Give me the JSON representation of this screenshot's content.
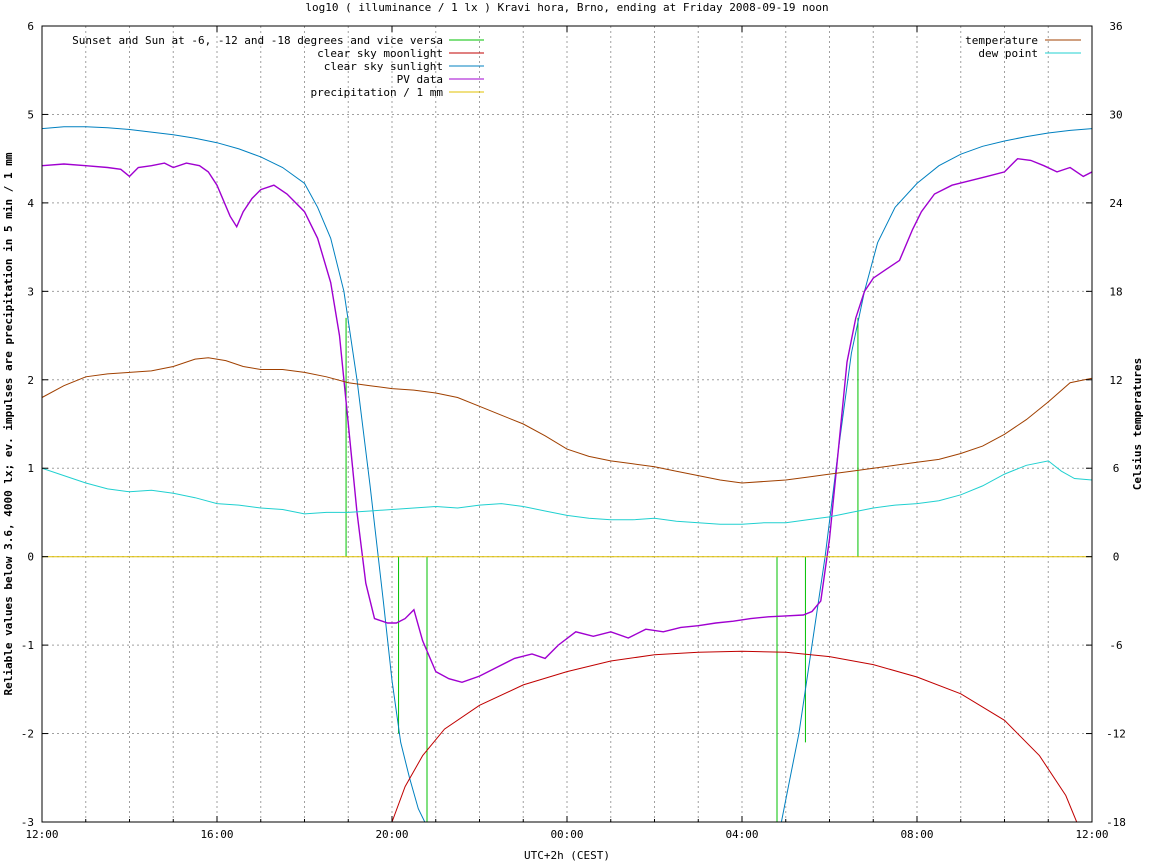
{
  "chart_data": {
    "type": "line",
    "title": "log10 ( illuminance / 1 lx ) Kravi hora, Brno, ending at Friday 2008-09-19 noon",
    "xlabel": "UTC+2h (CEST)",
    "ylabel": "Reliable values below 3.6, 4000 lx; ev. impulses are precipitation in 5 min / 1 mm",
    "y2label": "Celsius temperatures",
    "x_unit": "hours since 12:00 start",
    "xlim": [
      0,
      24
    ],
    "ylim": [
      -3,
      6
    ],
    "y2lim": [
      -18,
      36
    ],
    "grid": true,
    "x_ticks": [
      {
        "v": 0,
        "label": "12:00"
      },
      {
        "v": 4,
        "label": "16:00"
      },
      {
        "v": 8,
        "label": "20:00"
      },
      {
        "v": 12,
        "label": "00:00"
      },
      {
        "v": 16,
        "label": "04:00"
      },
      {
        "v": 20,
        "label": "08:00"
      },
      {
        "v": 24,
        "label": "12:00"
      }
    ],
    "y_ticks": [
      {
        "v": -3,
        "label": "-3"
      },
      {
        "v": -2,
        "label": "-2"
      },
      {
        "v": -1,
        "label": "-1"
      },
      {
        "v": 0,
        "label": "0"
      },
      {
        "v": 1,
        "label": "1"
      },
      {
        "v": 2,
        "label": "2"
      },
      {
        "v": 3,
        "label": "3"
      },
      {
        "v": 4,
        "label": "4"
      },
      {
        "v": 5,
        "label": "5"
      },
      {
        "v": 6,
        "label": "6"
      }
    ],
    "y2_ticks": [
      {
        "v": -18,
        "label": "-18"
      },
      {
        "v": -12,
        "label": "-12"
      },
      {
        "v": -6,
        "label": "-6"
      },
      {
        "v": 0,
        "label": "0"
      },
      {
        "v": 6,
        "label": "6"
      },
      {
        "v": 12,
        "label": "12"
      },
      {
        "v": 18,
        "label": "18"
      },
      {
        "v": 24,
        "label": "24"
      },
      {
        "v": 30,
        "label": "30"
      },
      {
        "v": 36,
        "label": "36"
      }
    ],
    "legend_left": [
      {
        "name": "Sunset and Sun at -6, -12 and -18 degrees and vice versa",
        "color": "#00c000"
      },
      {
        "name": "clear sky moonlight",
        "color": "#c00000"
      },
      {
        "name": "clear sky sunlight",
        "color": "#0080c0"
      },
      {
        "name": "PV data",
        "color": "#a000d0"
      },
      {
        "name": "precipitation / 1 mm",
        "color": "#e0c000"
      }
    ],
    "legend_right": [
      {
        "name": "temperature",
        "color": "#a04000"
      },
      {
        "name": "dew point",
        "color": "#20d0d0"
      }
    ],
    "sun_events": [
      {
        "x": 6.95,
        "y0": 0,
        "y1": 2.7
      },
      {
        "x": 8.15,
        "y0": 0,
        "y1": -2.0
      },
      {
        "x": 8.8,
        "y0": 0,
        "y1": -3.0
      },
      {
        "x": 16.8,
        "y0": 0,
        "y1": -3.0
      },
      {
        "x": 17.45,
        "y0": 0,
        "y1": -2.1
      },
      {
        "x": 18.65,
        "y0": 0,
        "y1": 2.7
      }
    ],
    "series": [
      {
        "name": "clear sky sunlight",
        "axis": "y1",
        "color": "#0080c0",
        "points": [
          [
            0,
            4.84
          ],
          [
            0.5,
            4.86
          ],
          [
            1,
            4.86
          ],
          [
            1.5,
            4.85
          ],
          [
            2,
            4.83
          ],
          [
            2.5,
            4.8
          ],
          [
            3,
            4.77
          ],
          [
            3.5,
            4.73
          ],
          [
            4,
            4.68
          ],
          [
            4.5,
            4.61
          ],
          [
            5,
            4.52
          ],
          [
            5.5,
            4.4
          ],
          [
            6,
            4.22
          ],
          [
            6.3,
            3.95
          ],
          [
            6.6,
            3.6
          ],
          [
            6.9,
            3.0
          ],
          [
            7.2,
            2.0
          ],
          [
            7.5,
            0.8
          ],
          [
            7.8,
            -0.5
          ],
          [
            8.0,
            -1.4
          ],
          [
            8.2,
            -2.1
          ],
          [
            8.4,
            -2.5
          ],
          [
            8.6,
            -2.85
          ],
          [
            8.75,
            -3.0
          ]
        ]
      },
      {
        "name": "clear sky sunlight (morning)",
        "axis": "y1",
        "color": "#0080c0",
        "points": [
          [
            16.9,
            -3.0
          ],
          [
            17.1,
            -2.5
          ],
          [
            17.3,
            -2.0
          ],
          [
            17.6,
            -1.0
          ],
          [
            17.9,
            0.0
          ],
          [
            18.2,
            1.2
          ],
          [
            18.5,
            2.3
          ],
          [
            18.8,
            3.0
          ],
          [
            19.1,
            3.55
          ],
          [
            19.5,
            3.95
          ],
          [
            20,
            4.22
          ],
          [
            20.5,
            4.42
          ],
          [
            21,
            4.55
          ],
          [
            21.5,
            4.64
          ],
          [
            22,
            4.7
          ],
          [
            22.5,
            4.75
          ],
          [
            23,
            4.79
          ],
          [
            23.5,
            4.82
          ],
          [
            24,
            4.84
          ]
        ]
      },
      {
        "name": "clear sky moonlight",
        "axis": "y1",
        "color": "#c00000",
        "points": [
          [
            8.0,
            -3.0
          ],
          [
            8.3,
            -2.6
          ],
          [
            8.7,
            -2.25
          ],
          [
            9.2,
            -1.95
          ],
          [
            10,
            -1.68
          ],
          [
            11,
            -1.45
          ],
          [
            12,
            -1.3
          ],
          [
            13,
            -1.18
          ],
          [
            14,
            -1.11
          ],
          [
            15,
            -1.08
          ],
          [
            16,
            -1.07
          ],
          [
            17,
            -1.08
          ],
          [
            18,
            -1.13
          ],
          [
            19,
            -1.22
          ],
          [
            20,
            -1.36
          ],
          [
            21,
            -1.55
          ],
          [
            22,
            -1.85
          ],
          [
            22.8,
            -2.25
          ],
          [
            23.4,
            -2.7
          ],
          [
            23.65,
            -3.0
          ]
        ]
      },
      {
        "name": "PV data",
        "axis": "y1",
        "color": "#a000d0",
        "points": [
          [
            0,
            4.42
          ],
          [
            0.5,
            4.44
          ],
          [
            1,
            4.42
          ],
          [
            1.5,
            4.4
          ],
          [
            1.8,
            4.38
          ],
          [
            2.0,
            4.3
          ],
          [
            2.2,
            4.4
          ],
          [
            2.5,
            4.42
          ],
          [
            2.8,
            4.45
          ],
          [
            3.0,
            4.4
          ],
          [
            3.3,
            4.45
          ],
          [
            3.6,
            4.42
          ],
          [
            3.8,
            4.35
          ],
          [
            4.0,
            4.2
          ],
          [
            4.3,
            3.85
          ],
          [
            4.45,
            3.73
          ],
          [
            4.6,
            3.9
          ],
          [
            4.8,
            4.05
          ],
          [
            5.0,
            4.15
          ],
          [
            5.3,
            4.2
          ],
          [
            5.6,
            4.1
          ],
          [
            6.0,
            3.9
          ],
          [
            6.3,
            3.6
          ],
          [
            6.6,
            3.1
          ],
          [
            6.8,
            2.5
          ],
          [
            7.0,
            1.5
          ],
          [
            7.2,
            0.5
          ],
          [
            7.4,
            -0.3
          ],
          [
            7.6,
            -0.7
          ],
          [
            7.9,
            -0.75
          ],
          [
            8.1,
            -0.75
          ],
          [
            8.3,
            -0.7
          ],
          [
            8.5,
            -0.6
          ],
          [
            8.7,
            -0.95
          ],
          [
            9.0,
            -1.3
          ],
          [
            9.3,
            -1.38
          ],
          [
            9.6,
            -1.42
          ],
          [
            10.0,
            -1.35
          ],
          [
            10.4,
            -1.25
          ],
          [
            10.8,
            -1.15
          ],
          [
            11.2,
            -1.1
          ],
          [
            11.5,
            -1.15
          ],
          [
            11.8,
            -1.0
          ],
          [
            12.2,
            -0.85
          ],
          [
            12.6,
            -0.9
          ],
          [
            13.0,
            -0.85
          ],
          [
            13.4,
            -0.92
          ],
          [
            13.8,
            -0.82
          ],
          [
            14.2,
            -0.85
          ],
          [
            14.6,
            -0.8
          ],
          [
            15.0,
            -0.78
          ],
          [
            15.4,
            -0.75
          ],
          [
            15.8,
            -0.73
          ],
          [
            16.2,
            -0.7
          ],
          [
            16.6,
            -0.68
          ],
          [
            17.0,
            -0.67
          ],
          [
            17.4,
            -0.66
          ],
          [
            17.6,
            -0.62
          ],
          [
            17.8,
            -0.5
          ],
          [
            18.0,
            0.2
          ],
          [
            18.2,
            1.2
          ],
          [
            18.4,
            2.2
          ],
          [
            18.6,
            2.7
          ],
          [
            18.8,
            3.0
          ],
          [
            19.0,
            3.15
          ],
          [
            19.3,
            3.25
          ],
          [
            19.6,
            3.35
          ],
          [
            19.9,
            3.7
          ],
          [
            20.1,
            3.9
          ],
          [
            20.4,
            4.1
          ],
          [
            20.8,
            4.2
          ],
          [
            21.2,
            4.25
          ],
          [
            21.6,
            4.3
          ],
          [
            22.0,
            4.35
          ],
          [
            22.3,
            4.5
          ],
          [
            22.6,
            4.48
          ],
          [
            22.9,
            4.42
          ],
          [
            23.2,
            4.35
          ],
          [
            23.5,
            4.4
          ],
          [
            23.8,
            4.3
          ],
          [
            24,
            4.35
          ]
        ]
      },
      {
        "name": "temperature",
        "axis": "y2",
        "color": "#a04000",
        "points": [
          [
            0,
            10.8
          ],
          [
            0.5,
            11.6
          ],
          [
            1,
            12.2
          ],
          [
            1.5,
            12.4
          ],
          [
            2,
            12.5
          ],
          [
            2.5,
            12.6
          ],
          [
            3,
            12.9
          ],
          [
            3.5,
            13.4
          ],
          [
            3.8,
            13.5
          ],
          [
            4.2,
            13.3
          ],
          [
            4.6,
            12.9
          ],
          [
            5,
            12.7
          ],
          [
            5.5,
            12.7
          ],
          [
            6,
            12.5
          ],
          [
            6.5,
            12.2
          ],
          [
            7,
            11.8
          ],
          [
            7.5,
            11.6
          ],
          [
            8,
            11.4
          ],
          [
            8.5,
            11.3
          ],
          [
            9,
            11.1
          ],
          [
            9.5,
            10.8
          ],
          [
            10,
            10.2
          ],
          [
            10.5,
            9.6
          ],
          [
            11,
            9.0
          ],
          [
            11.5,
            8.2
          ],
          [
            12,
            7.3
          ],
          [
            12.5,
            6.8
          ],
          [
            13,
            6.5
          ],
          [
            13.5,
            6.3
          ],
          [
            14,
            6.1
          ],
          [
            14.5,
            5.8
          ],
          [
            15,
            5.5
          ],
          [
            15.5,
            5.2
          ],
          [
            16,
            5.0
          ],
          [
            16.5,
            5.1
          ],
          [
            17,
            5.2
          ],
          [
            17.5,
            5.4
          ],
          [
            18,
            5.6
          ],
          [
            18.5,
            5.8
          ],
          [
            19,
            6.0
          ],
          [
            19.5,
            6.2
          ],
          [
            20,
            6.4
          ],
          [
            20.5,
            6.6
          ],
          [
            21,
            7.0
          ],
          [
            21.5,
            7.5
          ],
          [
            22,
            8.3
          ],
          [
            22.5,
            9.3
          ],
          [
            23,
            10.5
          ],
          [
            23.5,
            11.8
          ],
          [
            24,
            12.1
          ]
        ]
      },
      {
        "name": "dew point",
        "axis": "y2",
        "color": "#20d0d0",
        "points": [
          [
            0,
            6.0
          ],
          [
            0.5,
            5.5
          ],
          [
            1,
            5.0
          ],
          [
            1.5,
            4.6
          ],
          [
            2,
            4.4
          ],
          [
            2.5,
            4.5
          ],
          [
            3,
            4.3
          ],
          [
            3.5,
            4.0
          ],
          [
            4,
            3.6
          ],
          [
            4.5,
            3.5
          ],
          [
            5,
            3.3
          ],
          [
            5.5,
            3.2
          ],
          [
            6,
            2.9
          ],
          [
            6.5,
            3.0
          ],
          [
            7,
            3.0
          ],
          [
            7.5,
            3.1
          ],
          [
            8,
            3.2
          ],
          [
            8.5,
            3.3
          ],
          [
            9,
            3.4
          ],
          [
            9.5,
            3.3
          ],
          [
            10,
            3.5
          ],
          [
            10.5,
            3.6
          ],
          [
            11,
            3.4
          ],
          [
            11.5,
            3.1
          ],
          [
            12,
            2.8
          ],
          [
            12.5,
            2.6
          ],
          [
            13,
            2.5
          ],
          [
            13.5,
            2.5
          ],
          [
            14,
            2.6
          ],
          [
            14.5,
            2.4
          ],
          [
            15,
            2.3
          ],
          [
            15.5,
            2.2
          ],
          [
            16,
            2.2
          ],
          [
            16.5,
            2.3
          ],
          [
            17,
            2.3
          ],
          [
            17.5,
            2.5
          ],
          [
            18,
            2.7
          ],
          [
            18.5,
            3.0
          ],
          [
            19,
            3.3
          ],
          [
            19.5,
            3.5
          ],
          [
            20,
            3.6
          ],
          [
            20.5,
            3.8
          ],
          [
            21,
            4.2
          ],
          [
            21.5,
            4.8
          ],
          [
            22,
            5.6
          ],
          [
            22.5,
            6.2
          ],
          [
            23,
            6.5
          ],
          [
            23.3,
            5.8
          ],
          [
            23.6,
            5.3
          ],
          [
            24,
            5.2
          ]
        ]
      },
      {
        "name": "precipitation / 1 mm",
        "axis": "y1",
        "color": "#e0c000",
        "points": [
          [
            0,
            0
          ],
          [
            24,
            0
          ]
        ]
      }
    ]
  }
}
